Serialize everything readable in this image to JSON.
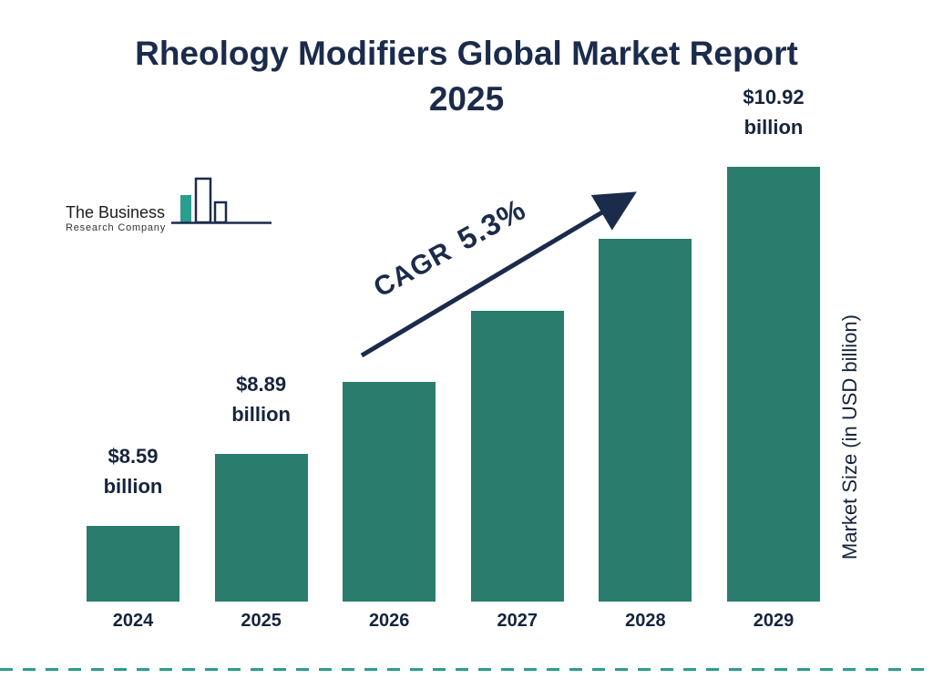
{
  "title": {
    "line1": "Rheology Modifiers Global Market Report",
    "line2": "2025"
  },
  "logo": {
    "line1": "The Business",
    "line2": "Research Company"
  },
  "cagr": {
    "label": "CAGR",
    "value": "5.3%"
  },
  "colors": {
    "bar": "#2a7c6c",
    "navy": "#1b2b4b",
    "accent_teal": "#2aa98c",
    "dashed_line": "#2a9d8f"
  },
  "chart_data": {
    "type": "bar",
    "title": "Rheology Modifiers Global Market Report 2025",
    "categories": [
      "2024",
      "2025",
      "2026",
      "2027",
      "2028",
      "2029"
    ],
    "values": [
      8.59,
      8.89,
      9.36,
      9.86,
      10.38,
      10.92
    ],
    "unit": "USD billion",
    "value_labels": [
      "$8.59 billion",
      "$8.89 billion",
      "",
      "",
      "",
      "$10.92 billion"
    ],
    "ylabel": "Market Size (in USD billion)",
    "xlabel": "",
    "annotations": [
      {
        "text": "CAGR 5.3%",
        "type": "growth-arrow"
      }
    ],
    "legend": false,
    "grid": false,
    "baseline_zero": false
  }
}
